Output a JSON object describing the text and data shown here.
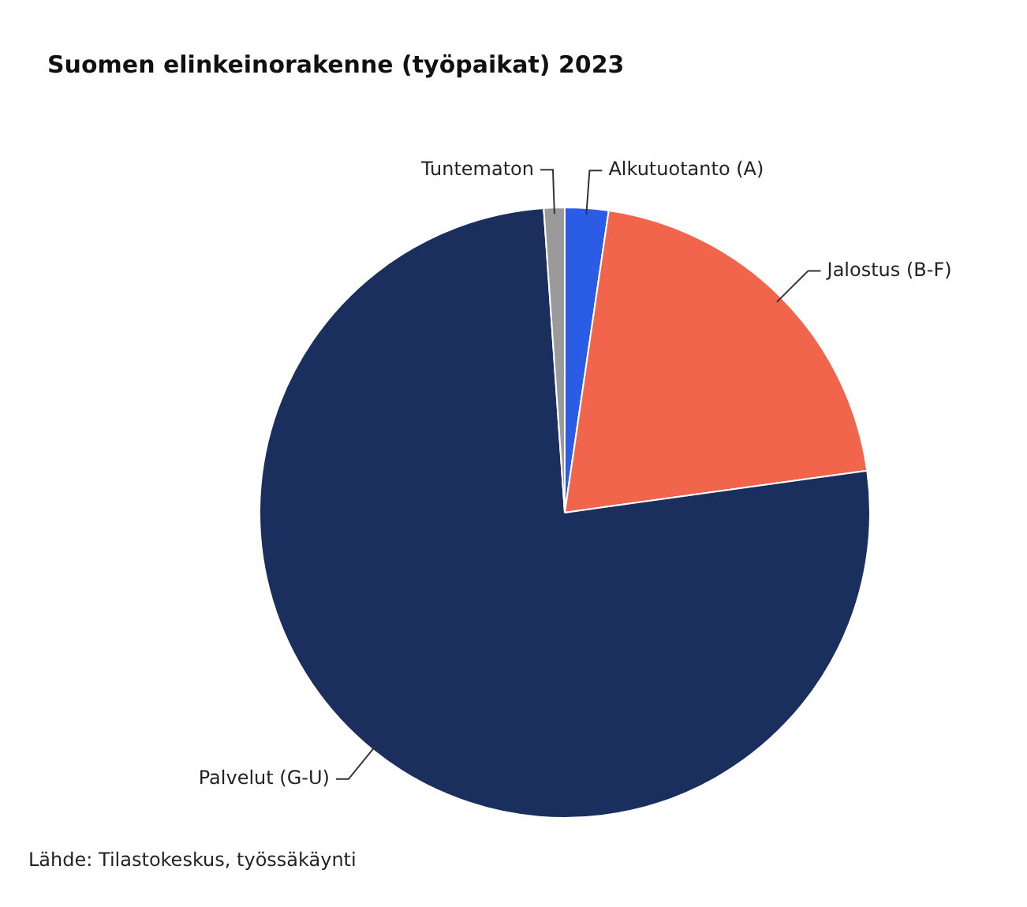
{
  "chart_data": {
    "type": "pie",
    "title": "Suomen elinkeinorakenne (työpaikat) 2023",
    "categories": [
      "Alkutuotanto (A)",
      "Jalostus (B-F)",
      "Palvelut (G-U)",
      "Tuntematon"
    ],
    "values": [
      2.3,
      20.5,
      76.1,
      1.1
    ],
    "colors": [
      "#2b5ce6",
      "#f0654c",
      "#1b2f5e",
      "#9a9a9a"
    ],
    "annotations": [
      "Lähde: Tilastokeskus, työssäkäynti"
    ]
  }
}
